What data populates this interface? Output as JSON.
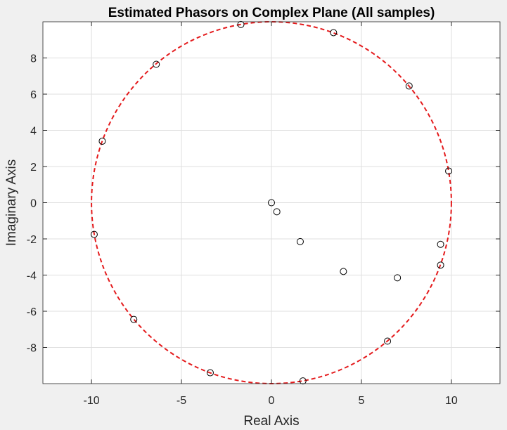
{
  "chart_data": {
    "type": "scatter",
    "title": "Estimated Phasors on Complex Plane (All samples)",
    "xlabel": "Real Axis",
    "ylabel": "Imaginary Axis",
    "xlim": [
      -12.7,
      12.7
    ],
    "ylim": [
      -10,
      10
    ],
    "xticks": [
      -10,
      -5,
      0,
      5,
      10
    ],
    "yticks": [
      -8,
      -6,
      -4,
      -2,
      0,
      2,
      4,
      6,
      8
    ],
    "grid": true,
    "legend": "none",
    "series": [
      {
        "marker": "open-circle",
        "color": "#000000",
        "points": [
          {
            "x": 0.0,
            "y": 0.0
          },
          {
            "x": 0.3,
            "y": -0.5
          },
          {
            "x": 1.6,
            "y": -2.15
          },
          {
            "x": 4.0,
            "y": -3.8
          },
          {
            "x": 7.0,
            "y": -4.15
          },
          {
            "x": 9.4,
            "y": -2.3
          },
          {
            "x": 9.4,
            "y": -3.45
          },
          {
            "x": 9.85,
            "y": 1.75
          },
          {
            "x": 7.65,
            "y": 6.45
          },
          {
            "x": 3.45,
            "y": 9.4
          },
          {
            "x": -1.7,
            "y": 9.85
          },
          {
            "x": -6.4,
            "y": 7.65
          },
          {
            "x": -9.4,
            "y": 3.4
          },
          {
            "x": -9.85,
            "y": -1.75
          },
          {
            "x": -7.65,
            "y": -6.45
          },
          {
            "x": -3.4,
            "y": -9.4
          },
          {
            "x": 1.75,
            "y": -9.85
          },
          {
            "x": 6.45,
            "y": -7.65
          }
        ]
      }
    ],
    "circle": {
      "center_x": 0,
      "center_y": 0,
      "radius": 10,
      "color": "#e41a1c",
      "style": "dashed"
    }
  }
}
